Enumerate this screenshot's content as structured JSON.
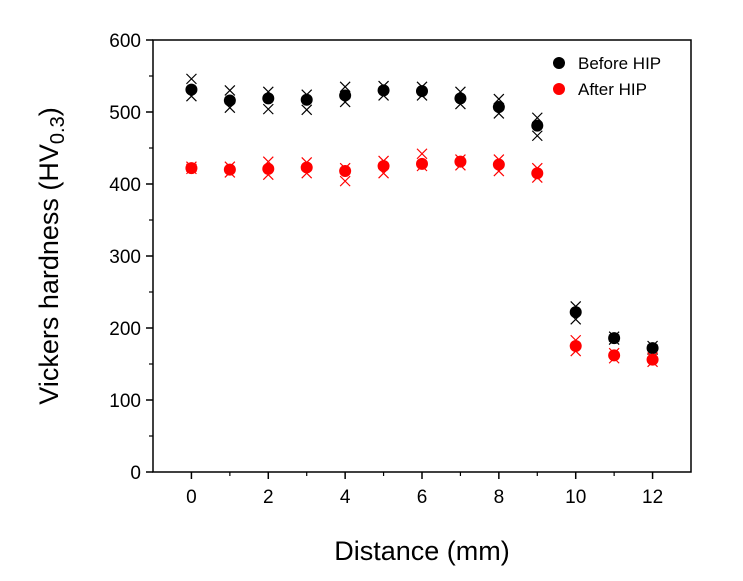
{
  "chart_data": {
    "type": "scatter",
    "xlabel": "Distance (mm)",
    "ylabel": "Vickers hardness (HV",
    "ylabel_sub": "0.3",
    "ylabel_close": ")",
    "xlim": [
      -1,
      13
    ],
    "ylim": [
      0,
      600
    ],
    "xticks": [
      0,
      2,
      4,
      6,
      8,
      10,
      12
    ],
    "xminor": [
      1,
      3,
      5,
      7,
      9,
      11
    ],
    "yticks": [
      0,
      100,
      200,
      300,
      400,
      500,
      600
    ],
    "yminor": [
      50,
      150,
      250,
      350,
      450,
      550
    ],
    "legend_position": "top-right",
    "grid": false,
    "series": [
      {
        "name": "Before HIP",
        "color": "#000000",
        "marker": "circle",
        "x": [
          0,
          1,
          2,
          3,
          4,
          5,
          6,
          7,
          8,
          9,
          10,
          11,
          12
        ],
        "y": [
          531,
          516,
          519,
          517,
          523,
          530,
          529,
          519,
          507,
          481,
          222,
          186,
          172
        ],
        "individual": [
          [
            546,
            522
          ],
          [
            530,
            506
          ],
          [
            528,
            504
          ],
          [
            524,
            503
          ],
          [
            535,
            514
          ],
          [
            536,
            523
          ],
          [
            535,
            523
          ],
          [
            528,
            511
          ],
          [
            518,
            498
          ],
          [
            492,
            467
          ],
          [
            230,
            212
          ],
          [
            188,
            184
          ],
          [
            175,
            170
          ]
        ]
      },
      {
        "name": "After HIP",
        "color": "#ff0000",
        "marker": "circle",
        "x": [
          0,
          1,
          2,
          3,
          4,
          5,
          6,
          7,
          8,
          9,
          10,
          11,
          12
        ],
        "y": [
          422,
          420,
          421,
          423,
          418,
          425,
          428,
          431,
          427,
          415,
          175,
          162,
          156
        ],
        "individual": [
          [
            424,
            421
          ],
          [
            424,
            416
          ],
          [
            431,
            413
          ],
          [
            430,
            415
          ],
          [
            422,
            404
          ],
          [
            432,
            415
          ],
          [
            442,
            425
          ],
          [
            434,
            426
          ],
          [
            434,
            418
          ],
          [
            422,
            409
          ],
          [
            183,
            168
          ],
          [
            165,
            158
          ],
          [
            159,
            153
          ]
        ]
      }
    ]
  }
}
